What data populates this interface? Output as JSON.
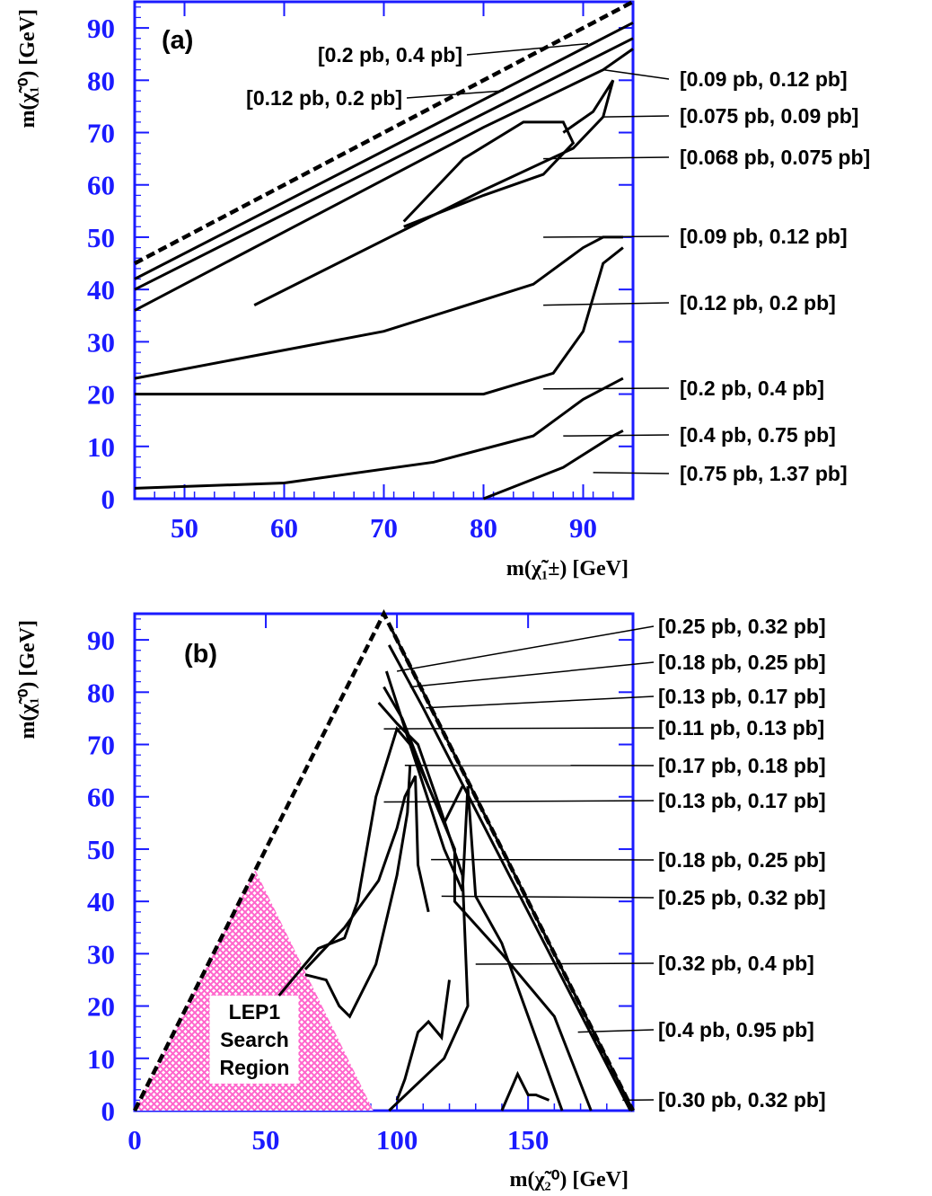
{
  "colors": {
    "frame": "#1a1aff",
    "tick_text": "#1a1aff",
    "region_fill": "#ff66cc",
    "line": "#000000"
  },
  "chart_data": [
    {
      "panel": "(a)",
      "type": "contour",
      "xlabel": "m(χ̃₁±) [GeV]",
      "ylabel": "m(χ̃₁⁰) [GeV]",
      "xlim": [
        45,
        95
      ],
      "ylim": [
        0,
        95
      ],
      "xticks": [
        50,
        60,
        70,
        80,
        90
      ],
      "yticks": [
        0,
        10,
        20,
        30,
        40,
        50,
        60,
        70,
        80,
        90
      ],
      "kinematic_limit": {
        "style": "dashed",
        "x": [
          45,
          95
        ],
        "y": [
          45,
          95
        ]
      },
      "contours": [
        {
          "x": [
            45,
            95
          ],
          "y": [
            42,
            91
          ]
        },
        {
          "x": [
            45,
            95
          ],
          "y": [
            40,
            88
          ]
        },
        {
          "x": [
            45,
            80,
            92,
            95
          ],
          "y": [
            36,
            71,
            82,
            86
          ]
        },
        {
          "x": [
            57,
            80,
            89,
            92,
            93,
            91,
            88
          ],
          "y": [
            37,
            59,
            67,
            73,
            80,
            74,
            70
          ]
        },
        {
          "x": [
            72,
            80,
            86,
            89,
            88,
            84,
            78,
            72
          ],
          "y": [
            52,
            58,
            62,
            68,
            72,
            72,
            65,
            53
          ]
        },
        {
          "x": [
            45,
            70,
            85,
            90,
            92,
            94
          ],
          "y": [
            23,
            32,
            41,
            48,
            50,
            50
          ]
        },
        {
          "x": [
            45,
            80,
            87,
            90,
            92,
            94
          ],
          "y": [
            20,
            20,
            24,
            32,
            45,
            48
          ]
        },
        {
          "x": [
            45,
            60,
            75,
            85,
            90,
            94
          ],
          "y": [
            2,
            3,
            7,
            12,
            19,
            23
          ]
        },
        {
          "x": [
            80,
            88,
            93,
            94
          ],
          "y": [
            0,
            6,
            12,
            13
          ]
        }
      ],
      "annotations": [
        {
          "text": "[0.2 pb, 0.4 pb]",
          "x": 90.5,
          "y": 87
        },
        {
          "text": "[0.12 pb, 0.2 pb]",
          "x": 82,
          "y": 78
        },
        {
          "text": "[0.09 pb, 0.12 pb]",
          "x": 92,
          "y": 82
        },
        {
          "text": "[0.075 pb, 0.09 pb]",
          "x": 92,
          "y": 73
        },
        {
          "text": "[0.068 pb, 0.075 pb]",
          "x": 86,
          "y": 65
        },
        {
          "text": "[0.09 pb, 0.12 pb]",
          "x": 86,
          "y": 50
        },
        {
          "text": "[0.12 pb, 0.2 pb]",
          "x": 86,
          "y": 37
        },
        {
          "text": "[0.2 pb, 0.4 pb]",
          "x": 86,
          "y": 21
        },
        {
          "text": "[0.4 pb, 0.75 pb]",
          "x": 88,
          "y": 12
        },
        {
          "text": "[0.75 pb, 1.37 pb]",
          "x": 91,
          "y": 5
        }
      ]
    },
    {
      "panel": "(b)",
      "type": "contour",
      "xlabel": "m(χ̃₂⁰) [GeV]",
      "ylabel": "m(χ̃₁⁰) [GeV]",
      "xlim": [
        0,
        190
      ],
      "ylim": [
        0,
        95
      ],
      "xticks": [
        0,
        50,
        100,
        150
      ],
      "yticks": [
        0,
        10,
        20,
        30,
        40,
        50,
        60,
        70,
        80,
        90
      ],
      "kinematic_limit": {
        "style": "dashed",
        "x": [
          0,
          95,
          190
        ],
        "y": [
          0,
          95,
          0
        ]
      },
      "region": {
        "label": [
          "LEP1",
          "Search",
          "Region"
        ],
        "x": [
          0,
          46,
          91
        ],
        "y": [
          0,
          46,
          0
        ]
      },
      "contours": [
        {
          "x": [
            97,
            190
          ],
          "y": [
            93,
            0
          ]
        },
        {
          "x": [
            97,
            110,
            189
          ],
          "y": [
            89,
            77,
            0
          ]
        },
        {
          "x": [
            96,
            105,
            118,
            125,
            127,
            130,
            140,
            163
          ],
          "y": [
            84,
            70,
            50,
            42,
            62,
            41,
            32,
            0
          ]
        },
        {
          "x": [
            95,
            102,
            112,
            122,
            122,
            140,
            160,
            174
          ],
          "y": [
            81,
            75,
            62,
            50,
            40,
            30,
            18,
            0
          ]
        },
        {
          "x": [
            93,
            100,
            108,
            115,
            125,
            127,
            118,
            97
          ],
          "y": [
            78,
            74,
            70,
            60,
            45,
            20,
            10,
            0
          ]
        },
        {
          "x": [
            55,
            70,
            80,
            85,
            92,
            100,
            105,
            118,
            125
          ],
          "y": [
            22,
            31,
            33,
            40,
            60,
            73,
            70,
            55,
            62
          ]
        },
        {
          "x": [
            65,
            80,
            93,
            100,
            103,
            107,
            108,
            112
          ],
          "y": [
            27,
            35,
            44,
            54,
            60,
            64,
            47,
            38
          ]
        },
        {
          "x": [
            65,
            73,
            78,
            82,
            92,
            100,
            104,
            105
          ],
          "y": [
            26,
            25,
            20,
            18,
            28,
            45,
            57,
            66
          ]
        },
        {
          "x": [
            100,
            103,
            108,
            112,
            117,
            120
          ],
          "y": [
            2,
            6,
            15,
            17,
            14,
            25
          ]
        },
        {
          "x": [
            140,
            146,
            150,
            153,
            158
          ],
          "y": [
            0,
            7,
            3,
            3,
            2
          ]
        }
      ],
      "annotations": [
        {
          "text": "[0.25 pb, 0.32 pb]",
          "x": 100,
          "y": 84
        },
        {
          "text": "[0.18 pb, 0.25 pb]",
          "x": 105,
          "y": 81
        },
        {
          "text": "[0.13 pb, 0.17 pb]",
          "x": 111,
          "y": 77
        },
        {
          "text": "[0.11 pb, 0.13 pb]",
          "x": 95,
          "y": 73
        },
        {
          "text": "[0.17 pb, 0.18 pb]",
          "x": 103,
          "y": 66
        },
        {
          "text": "[0.13 pb, 0.17 pb]",
          "x": 95,
          "y": 59
        },
        {
          "text": "[0.18 pb, 0.25 pb]",
          "x": 113,
          "y": 48
        },
        {
          "text": "[0.25 pb, 0.32 pb]",
          "x": 117,
          "y": 41
        },
        {
          "text": "[0.32 pb, 0.4 pb]",
          "x": 130,
          "y": 28
        },
        {
          "text": "[0.4 pb, 0.95 pb]",
          "x": 169,
          "y": 15
        },
        {
          "text": "[0.30 pb, 0.32 pb]",
          "x": 186,
          "y": 2
        }
      ]
    }
  ]
}
